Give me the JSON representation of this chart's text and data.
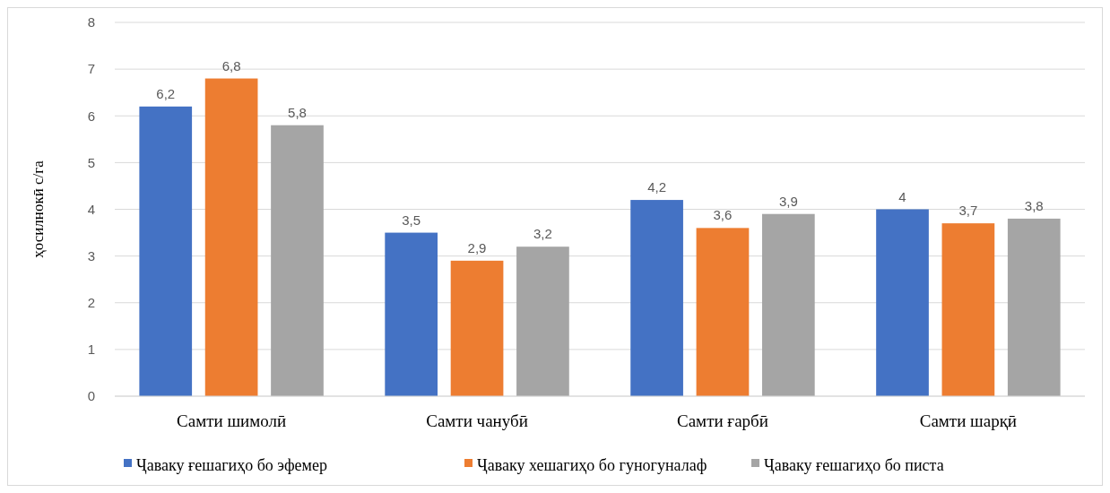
{
  "chart_data": {
    "type": "bar",
    "ylabel": "ҳосилнокӣ с/га",
    "categories": [
      "Самти шимолӣ",
      "Самти чанубӣ",
      "Самти ғарбӣ",
      "Самти шарқӣ"
    ],
    "series": [
      {
        "name": "Ҷаваку ғешагиҳо бо эфемер",
        "color": "#4472c4",
        "values": [
          6.2,
          3.5,
          4.2,
          4
        ],
        "value_labels": [
          "6,2",
          "3,5",
          "4,2",
          "4"
        ]
      },
      {
        "name": "Ҷаваку хешагиҳо бо гуногуналаф",
        "color": "#ed7d31",
        "values": [
          6.8,
          2.9,
          3.6,
          3.7
        ],
        "value_labels": [
          "6,8",
          "2,9",
          "3,6",
          "3,7"
        ]
      },
      {
        "name": "Ҷаваку ғешагиҳо бо писта",
        "color": "#a5a5a5",
        "values": [
          5.8,
          3.2,
          3.9,
          3.8
        ],
        "value_labels": [
          "5,8",
          "3,2",
          "3,9",
          "3,8"
        ]
      }
    ],
    "ylim": [
      0,
      8
    ],
    "yticks": [
      0,
      1,
      2,
      3,
      4,
      5,
      6,
      7,
      8
    ],
    "grid": "y",
    "legend": "bottom"
  }
}
